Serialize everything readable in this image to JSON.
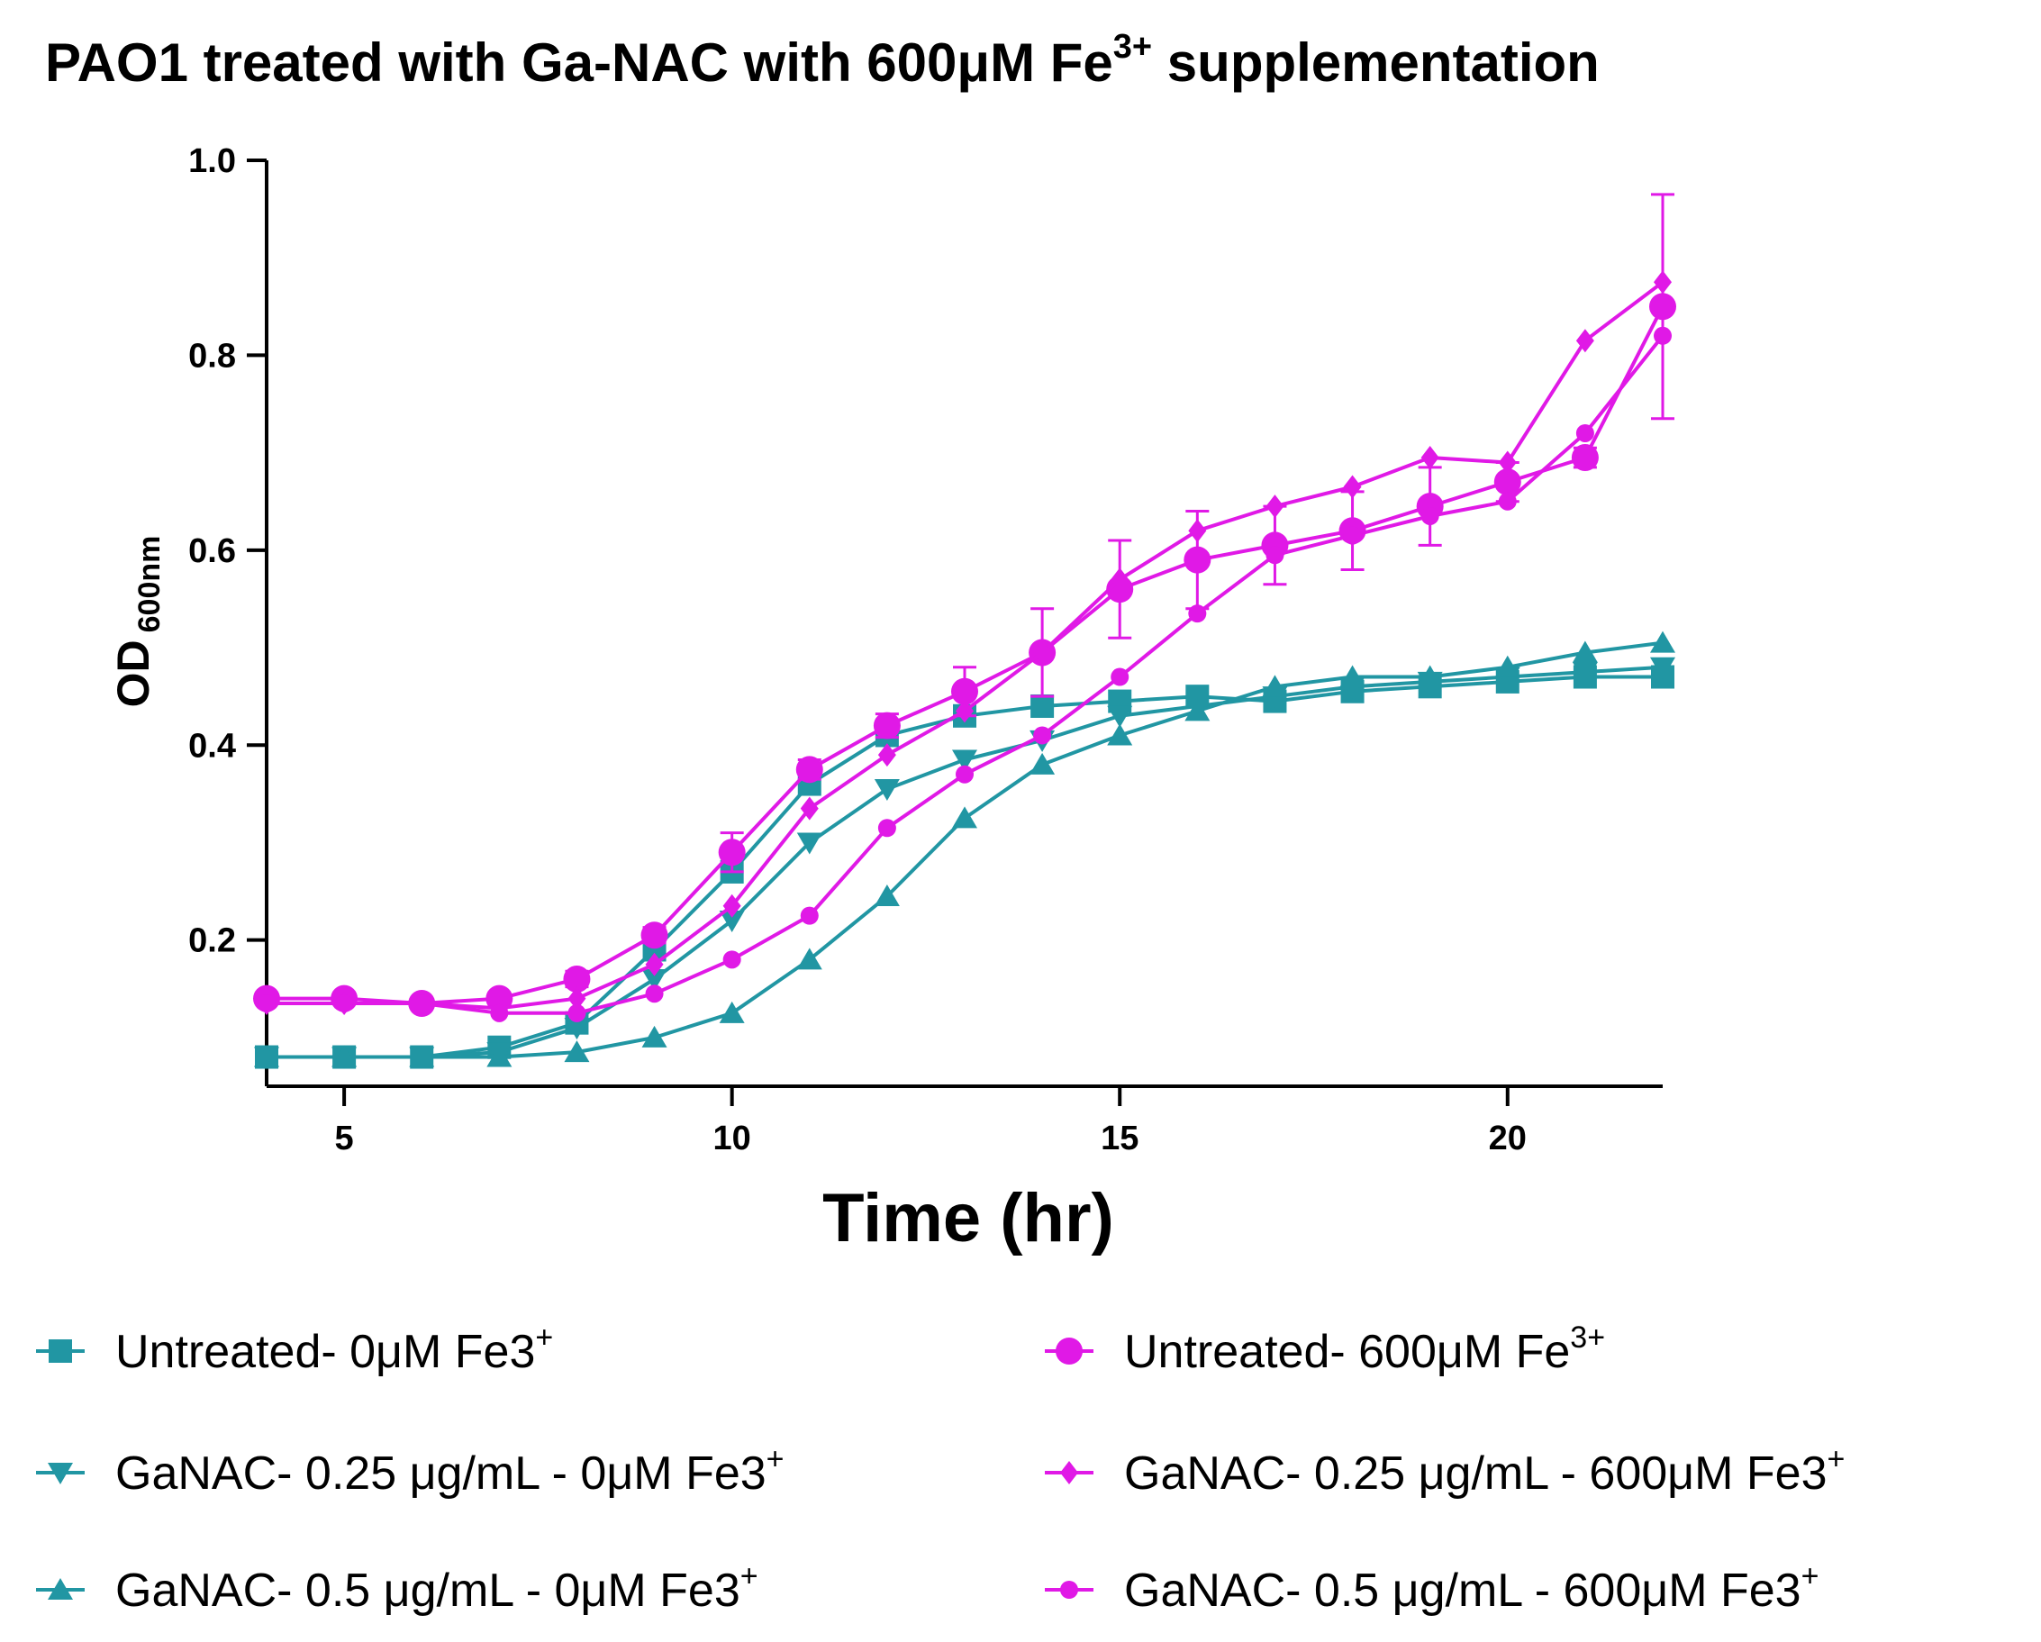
{
  "chart_data": {
    "type": "line",
    "title": "PAO1 treated with Ga-NAC with 600μM Fe",
    "title_sup": "3+",
    "title_tail": " supplementation",
    "xlabel": "Time (hr)",
    "ylabel": "OD",
    "ylabel_sub": "600nm",
    "xlim": [
      4,
      22
    ],
    "ylim": [
      0.05,
      1.0
    ],
    "x_ticks": [
      5,
      10,
      15,
      20
    ],
    "y_ticks": [
      0.2,
      0.4,
      0.6,
      0.8,
      1.0
    ],
    "x_tick_labels": [
      "5",
      "10",
      "15",
      "20"
    ],
    "y_tick_labels": [
      "0.2",
      "0.4",
      "0.6",
      "0.8",
      "1.0"
    ],
    "grid": false,
    "legend_position": "bottom",
    "x": [
      4,
      5,
      6,
      7,
      8,
      9,
      10,
      11,
      12,
      13,
      14,
      15,
      16,
      17,
      18,
      19,
      20,
      21,
      22
    ],
    "series": [
      {
        "name": "Untreated- 0μM Fe3",
        "name_sup": "+",
        "color": "#2196a3",
        "marker": "square",
        "values": [
          0.08,
          0.08,
          0.08,
          0.09,
          0.115,
          0.19,
          0.27,
          0.36,
          0.41,
          0.43,
          0.44,
          0.445,
          0.45,
          0.445,
          0.455,
          0.46,
          0.465,
          0.47,
          0.47
        ]
      },
      {
        "name": "GaNAC- 0.25 μg/mL - 0μM Fe3",
        "name_sup": "+",
        "color": "#2196a3",
        "marker": "triangle-down",
        "values": [
          0.08,
          0.08,
          0.08,
          0.085,
          0.11,
          0.16,
          0.22,
          0.3,
          0.355,
          0.385,
          0.405,
          0.43,
          0.44,
          0.45,
          0.46,
          0.465,
          0.47,
          0.475,
          0.48
        ]
      },
      {
        "name": "GaNAC- 0.5 μg/mL - 0μM Fe3",
        "name_sup": "+",
        "color": "#2196a3",
        "marker": "triangle-up",
        "values": [
          0.08,
          0.08,
          0.08,
          0.08,
          0.085,
          0.1,
          0.125,
          0.18,
          0.245,
          0.325,
          0.38,
          0.41,
          0.435,
          0.46,
          0.47,
          0.47,
          0.48,
          0.495,
          0.505
        ]
      },
      {
        "name": "Untreated- 600μM Fe",
        "name_sup": "3+",
        "color": "#e019e6",
        "marker": "circle",
        "values": [
          0.14,
          0.14,
          0.135,
          0.14,
          0.16,
          0.205,
          0.29,
          0.375,
          0.42,
          0.455,
          0.495,
          0.56,
          0.59,
          0.605,
          0.62,
          0.645,
          0.67,
          0.695,
          0.85
        ],
        "errors": [
          0.005,
          0.005,
          0.005,
          0.005,
          0.008,
          0.008,
          0.02,
          0.01,
          0.012,
          0.025,
          0.045,
          0.05,
          0.05,
          0.04,
          0.04,
          0.04,
          0.02,
          0.01,
          0.115
        ]
      },
      {
        "name": "GaNAC- 0.25 μg/mL - 600μM Fe3",
        "name_sup": "+",
        "color": "#e019e6",
        "marker": "diamond",
        "values": [
          0.135,
          0.135,
          0.135,
          0.13,
          0.14,
          0.175,
          0.235,
          0.335,
          0.39,
          0.435,
          0.495,
          0.57,
          0.62,
          0.645,
          0.665,
          0.695,
          0.69,
          0.815,
          0.875
        ]
      },
      {
        "name": "GaNAC- 0.5 μg/mL - 600μM Fe3",
        "name_sup": "+",
        "color": "#e019e6",
        "marker": "small-circle",
        "values": [
          0.135,
          0.135,
          0.135,
          0.125,
          0.125,
          0.145,
          0.18,
          0.225,
          0.315,
          0.37,
          0.41,
          0.47,
          0.535,
          0.595,
          0.615,
          0.635,
          0.65,
          0.72,
          0.82
        ]
      }
    ]
  }
}
